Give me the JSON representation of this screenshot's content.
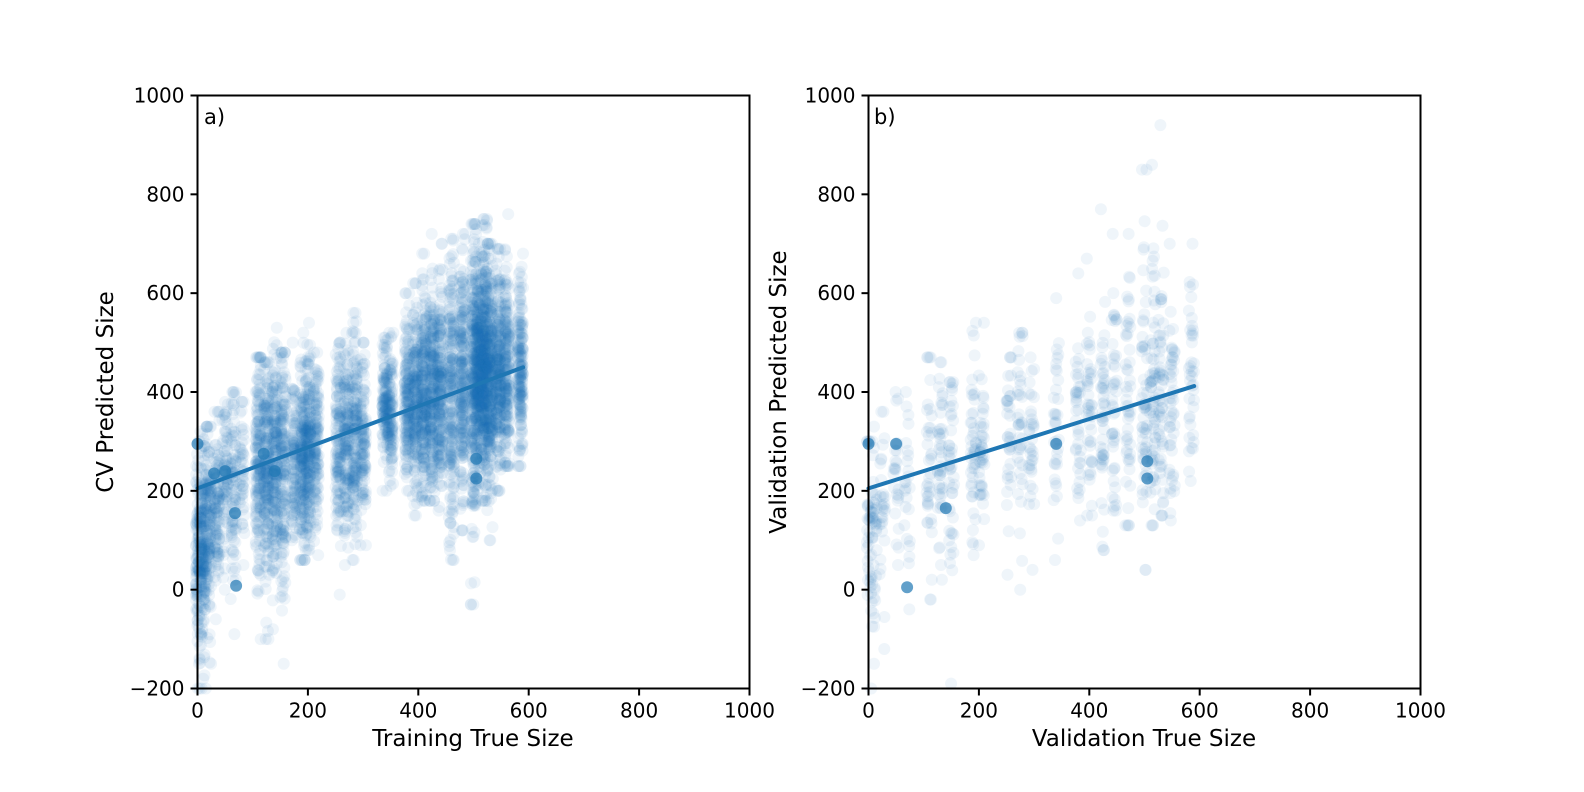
{
  "colors": {
    "marker": "#1f77b4",
    "axes": "#000000",
    "background": "#ffffff"
  },
  "chart_data": [
    {
      "type": "scatter",
      "panel_label": "a)",
      "xlabel": "Training True Size",
      "ylabel": "CV Predicted Size",
      "xlim": [
        0,
        1000
      ],
      "ylim": [
        -200,
        1000
      ],
      "xticks": [
        "0",
        "200",
        "400",
        "600",
        "800",
        "1000"
      ],
      "yticks": [
        "−200",
        "0",
        "200",
        "400",
        "600",
        "800",
        "1000"
      ],
      "grid": false,
      "legend": "none",
      "marker_alpha": 0.07,
      "groups": [
        {
          "x": 2,
          "y_min": -200,
          "y_max": 300,
          "y_mean": 60,
          "n": 160
        },
        {
          "x": 10,
          "y_min": -200,
          "y_max": 320,
          "y_mean": 90,
          "n": 160
        },
        {
          "x": 20,
          "y_min": -150,
          "y_max": 330,
          "y_mean": 120,
          "n": 140
        },
        {
          "x": 35,
          "y_min": -60,
          "y_max": 360,
          "y_mean": 180,
          "n": 110
        },
        {
          "x": 50,
          "y_min": 0,
          "y_max": 380,
          "y_mean": 230,
          "n": 80
        },
        {
          "x": 65,
          "y_min": -90,
          "y_max": 400,
          "y_mean": 200,
          "n": 90
        },
        {
          "x": 80,
          "y_min": 50,
          "y_max": 380,
          "y_mean": 240,
          "n": 50
        },
        {
          "x": 110,
          "y_min": -100,
          "y_max": 470,
          "y_mean": 250,
          "n": 180
        },
        {
          "x": 125,
          "y_min": -100,
          "y_max": 460,
          "y_mean": 255,
          "n": 200
        },
        {
          "x": 140,
          "y_min": -80,
          "y_max": 530,
          "y_mean": 260,
          "n": 200
        },
        {
          "x": 155,
          "y_min": -150,
          "y_max": 480,
          "y_mean": 250,
          "n": 180
        },
        {
          "x": 175,
          "y_min": 100,
          "y_max": 500,
          "y_mean": 260,
          "n": 120
        },
        {
          "x": 190,
          "y_min": 60,
          "y_max": 520,
          "y_mean": 270,
          "n": 180
        },
        {
          "x": 200,
          "y_min": 80,
          "y_max": 540,
          "y_mean": 280,
          "n": 200
        },
        {
          "x": 215,
          "y_min": 70,
          "y_max": 480,
          "y_mean": 290,
          "n": 140
        },
        {
          "x": 255,
          "y_min": -10,
          "y_max": 500,
          "y_mean": 300,
          "n": 140
        },
        {
          "x": 270,
          "y_min": 50,
          "y_max": 520,
          "y_mean": 300,
          "n": 160
        },
        {
          "x": 285,
          "y_min": 60,
          "y_max": 560,
          "y_mean": 305,
          "n": 160
        },
        {
          "x": 300,
          "y_min": 90,
          "y_max": 500,
          "y_mean": 310,
          "n": 120
        },
        {
          "x": 340,
          "y_min": 200,
          "y_max": 510,
          "y_mean": 370,
          "n": 130
        },
        {
          "x": 350,
          "y_min": 210,
          "y_max": 520,
          "y_mean": 360,
          "n": 120
        },
        {
          "x": 380,
          "y_min": 200,
          "y_max": 600,
          "y_mean": 380,
          "n": 180
        },
        {
          "x": 395,
          "y_min": 150,
          "y_max": 620,
          "y_mean": 380,
          "n": 200
        },
        {
          "x": 410,
          "y_min": 180,
          "y_max": 680,
          "y_mean": 390,
          "n": 240
        },
        {
          "x": 425,
          "y_min": 180,
          "y_max": 720,
          "y_mean": 395,
          "n": 240
        },
        {
          "x": 440,
          "y_min": 160,
          "y_max": 700,
          "y_mean": 400,
          "n": 230
        },
        {
          "x": 460,
          "y_min": 60,
          "y_max": 710,
          "y_mean": 410,
          "n": 240
        },
        {
          "x": 480,
          "y_min": 120,
          "y_max": 720,
          "y_mean": 415,
          "n": 260
        },
        {
          "x": 500,
          "y_min": -30,
          "y_max": 740,
          "y_mean": 430,
          "n": 300
        },
        {
          "x": 510,
          "y_min": 200,
          "y_max": 700,
          "y_mean": 440,
          "n": 320
        },
        {
          "x": 520,
          "y_min": 180,
          "y_max": 750,
          "y_mean": 440,
          "n": 320
        },
        {
          "x": 530,
          "y_min": 100,
          "y_max": 700,
          "y_mean": 445,
          "n": 300
        },
        {
          "x": 545,
          "y_min": 200,
          "y_max": 690,
          "y_mean": 445,
          "n": 260
        },
        {
          "x": 560,
          "y_min": 250,
          "y_max": 760,
          "y_mean": 450,
          "n": 220
        },
        {
          "x": 585,
          "y_min": 250,
          "y_max": 680,
          "y_mean": 450,
          "n": 200
        }
      ],
      "highlight_points": [
        [
          0,
          295
        ],
        [
          30,
          235
        ],
        [
          50,
          240
        ],
        [
          68,
          155
        ],
        [
          70,
          8
        ],
        [
          120,
          275
        ],
        [
          140,
          240
        ],
        [
          505,
          265
        ],
        [
          505,
          225
        ]
      ],
      "fit_line": {
        "x": [
          0,
          590
        ],
        "y": [
          205,
          450
        ]
      }
    },
    {
      "type": "scatter",
      "panel_label": "b)",
      "xlabel": "Validation True Size",
      "ylabel": "Validation Predicted Size",
      "xlim": [
        0,
        1000
      ],
      "ylim": [
        -200,
        1000
      ],
      "xticks": [
        "0",
        "200",
        "400",
        "600",
        "800",
        "1000"
      ],
      "yticks": [
        "−200",
        "0",
        "200",
        "400",
        "600",
        "800",
        "1000"
      ],
      "grid": false,
      "legend": "none",
      "marker_alpha": 0.07,
      "groups": [
        {
          "x": 2,
          "y_min": -200,
          "y_max": 300,
          "y_mean": 100,
          "n": 40
        },
        {
          "x": 10,
          "y_min": -150,
          "y_max": 330,
          "y_mean": 120,
          "n": 40
        },
        {
          "x": 25,
          "y_min": -120,
          "y_max": 360,
          "y_mean": 170,
          "n": 30
        },
        {
          "x": 50,
          "y_min": 50,
          "y_max": 400,
          "y_mean": 230,
          "n": 25
        },
        {
          "x": 70,
          "y_min": -40,
          "y_max": 400,
          "y_mean": 220,
          "n": 25
        },
        {
          "x": 110,
          "y_min": -20,
          "y_max": 470,
          "y_mean": 250,
          "n": 40
        },
        {
          "x": 130,
          "y_min": 20,
          "y_max": 460,
          "y_mean": 255,
          "n": 45
        },
        {
          "x": 150,
          "y_min": -190,
          "y_max": 420,
          "y_mean": 255,
          "n": 45
        },
        {
          "x": 190,
          "y_min": 70,
          "y_max": 540,
          "y_mean": 275,
          "n": 45
        },
        {
          "x": 205,
          "y_min": 90,
          "y_max": 540,
          "y_mean": 285,
          "n": 45
        },
        {
          "x": 255,
          "y_min": 30,
          "y_max": 470,
          "y_mean": 300,
          "n": 35
        },
        {
          "x": 275,
          "y_min": 0,
          "y_max": 520,
          "y_mean": 300,
          "n": 40
        },
        {
          "x": 295,
          "y_min": 40,
          "y_max": 470,
          "y_mean": 305,
          "n": 35
        },
        {
          "x": 340,
          "y_min": 60,
          "y_max": 590,
          "y_mean": 350,
          "n": 35
        },
        {
          "x": 380,
          "y_min": 140,
          "y_max": 640,
          "y_mean": 360,
          "n": 40
        },
        {
          "x": 400,
          "y_min": 150,
          "y_max": 670,
          "y_mean": 365,
          "n": 45
        },
        {
          "x": 425,
          "y_min": 80,
          "y_max": 770,
          "y_mean": 370,
          "n": 50
        },
        {
          "x": 445,
          "y_min": 160,
          "y_max": 720,
          "y_mean": 380,
          "n": 45
        },
        {
          "x": 470,
          "y_min": 130,
          "y_max": 720,
          "y_mean": 385,
          "n": 50
        },
        {
          "x": 500,
          "y_min": 40,
          "y_max": 850,
          "y_mean": 395,
          "n": 60
        },
        {
          "x": 515,
          "y_min": 130,
          "y_max": 860,
          "y_mean": 400,
          "n": 65
        },
        {
          "x": 530,
          "y_min": 150,
          "y_max": 940,
          "y_mean": 405,
          "n": 60
        },
        {
          "x": 550,
          "y_min": 140,
          "y_max": 700,
          "y_mean": 405,
          "n": 50
        },
        {
          "x": 585,
          "y_min": 220,
          "y_max": 700,
          "y_mean": 410,
          "n": 40
        }
      ],
      "highlight_points": [
        [
          0,
          295
        ],
        [
          50,
          295
        ],
        [
          70,
          5
        ],
        [
          140,
          165
        ],
        [
          340,
          295
        ],
        [
          505,
          260
        ],
        [
          505,
          225
        ]
      ],
      "fit_line": {
        "x": [
          0,
          590
        ],
        "y": [
          205,
          412
        ]
      }
    }
  ]
}
